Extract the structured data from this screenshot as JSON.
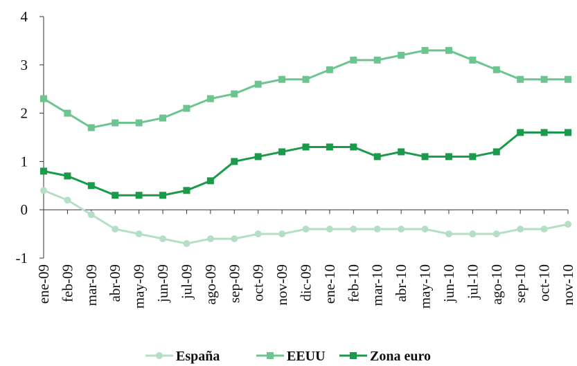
{
  "chart_data": {
    "type": "line",
    "categories": [
      "ene-09",
      "feb-09",
      "mar-09",
      "abr-09",
      "may-09",
      "jun-09",
      "jul-09",
      "ago-09",
      "sep-09",
      "oct-09",
      "nov-09",
      "dic-09",
      "ene-10",
      "feb-10",
      "mar-10",
      "abr-10",
      "may-10",
      "jun-10",
      "jul-10",
      "ago-10",
      "sep-10",
      "oct-10",
      "nov-10"
    ],
    "series": [
      {
        "name": "España",
        "color": "#b5dfc4",
        "marker": "circle",
        "values": [
          0.4,
          0.2,
          -0.1,
          -0.4,
          -0.5,
          -0.6,
          -0.7,
          -0.6,
          -0.6,
          -0.5,
          -0.5,
          -0.4,
          -0.4,
          -0.4,
          -0.4,
          -0.4,
          -0.4,
          -0.5,
          -0.5,
          -0.5,
          -0.4,
          -0.4,
          -0.3
        ]
      },
      {
        "name": "EEUU",
        "color": "#6cc48f",
        "marker": "square",
        "values": [
          2.3,
          2.0,
          1.7,
          1.8,
          1.8,
          1.9,
          2.1,
          2.3,
          2.4,
          2.6,
          2.7,
          2.7,
          2.9,
          3.1,
          3.1,
          3.2,
          3.3,
          3.3,
          3.1,
          2.9,
          2.7,
          2.7,
          2.7
        ]
      },
      {
        "name": "Zona euro",
        "color": "#1a9a4a",
        "marker": "square",
        "values": [
          0.8,
          0.7,
          0.5,
          0.3,
          0.3,
          0.3,
          0.4,
          0.6,
          1.0,
          1.1,
          1.2,
          1.3,
          1.3,
          1.3,
          1.1,
          1.2,
          1.1,
          1.1,
          1.1,
          1.2,
          1.6,
          1.6,
          1.6
        ]
      }
    ],
    "ylim": [
      -1,
      4
    ],
    "yticks": [
      -1,
      0,
      1,
      2,
      3,
      4
    ],
    "legend": "bottom"
  }
}
